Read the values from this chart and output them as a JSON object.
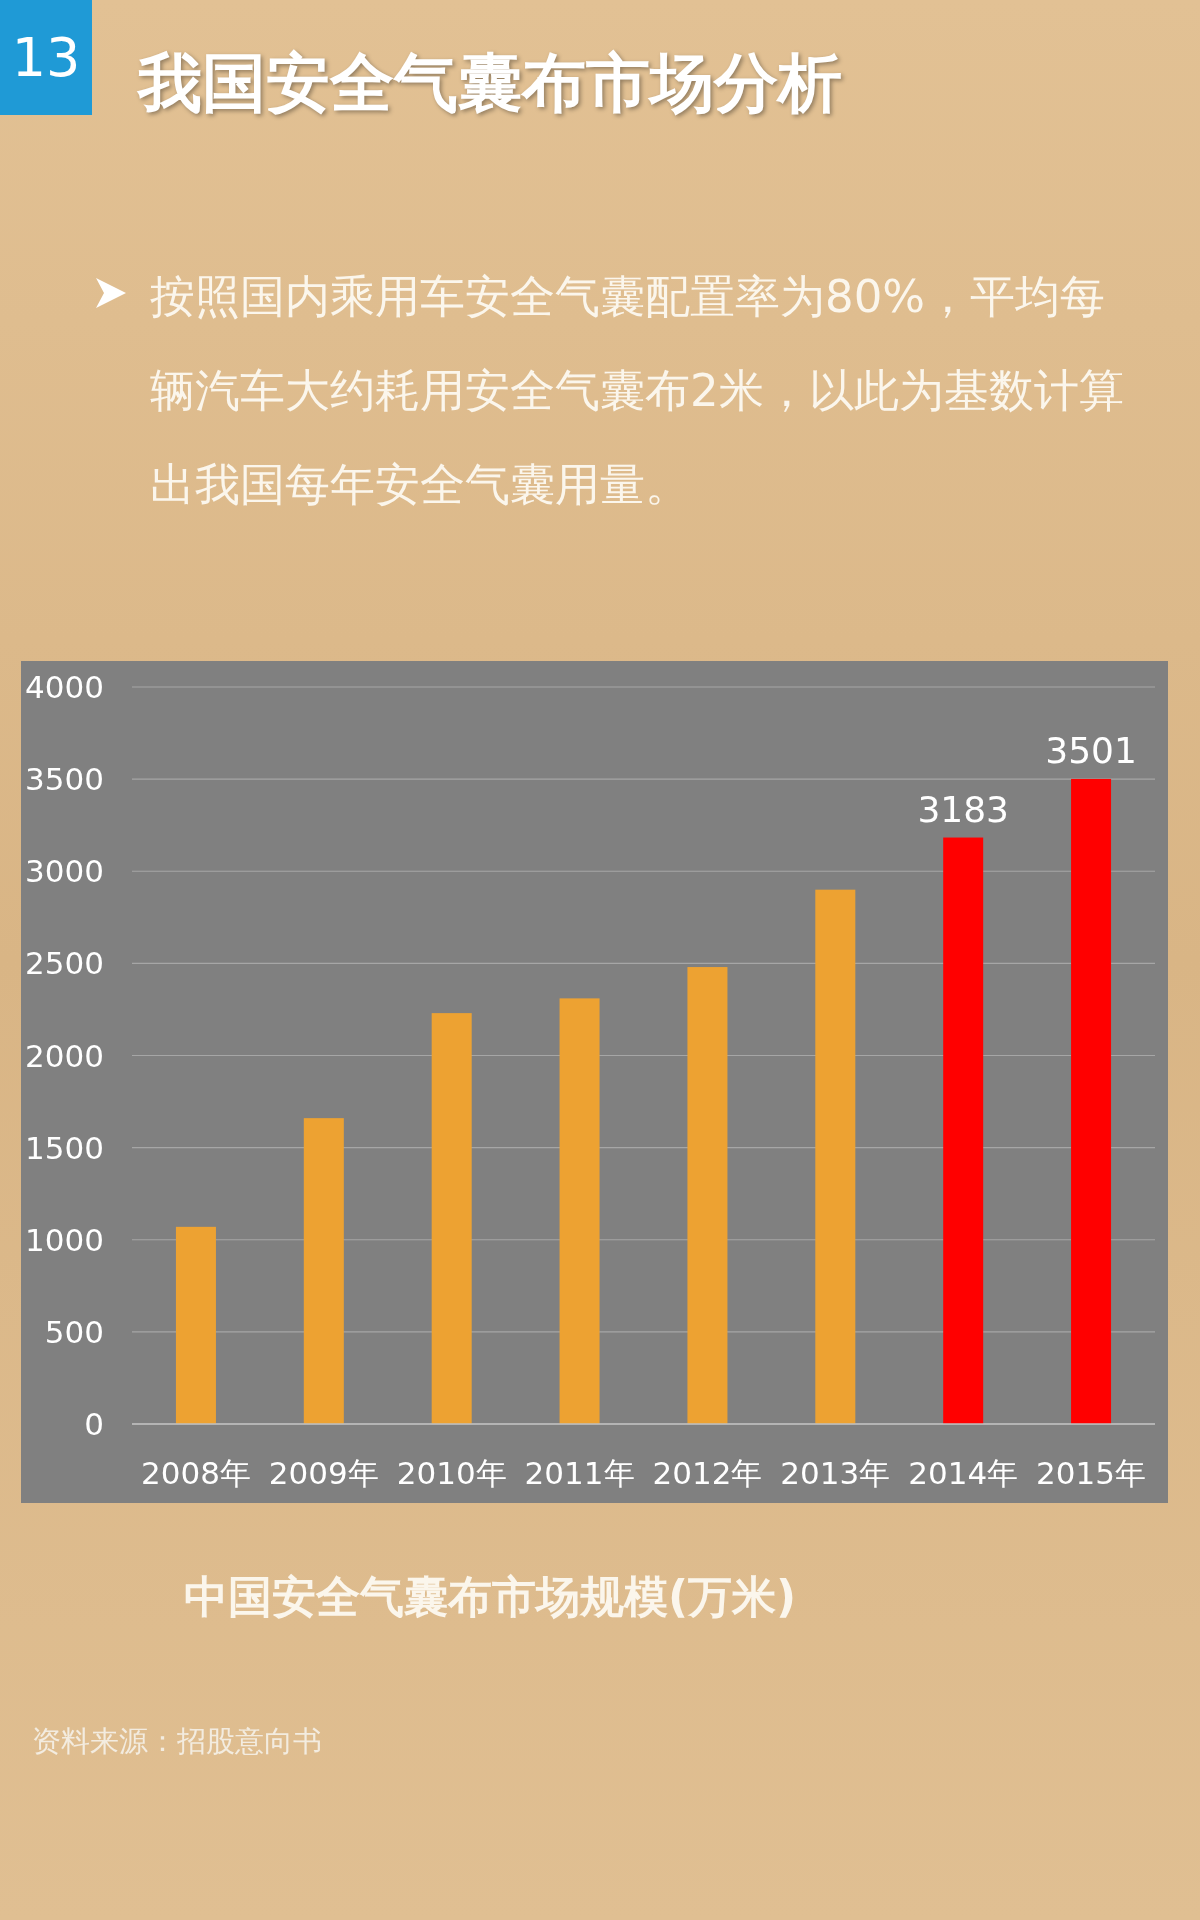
{
  "chart_data": {
    "type": "bar",
    "title": "我国安全气囊布市场分析",
    "subtitle": "按照国内乘用车安全气囊配置率为80%，平均每辆汽车大约耗用安全气囊布2米，以此为基数计算出我国每年安全气囊用量。",
    "categories": [
      "2008年",
      "2009年",
      "2010年",
      "2011年",
      "2012年",
      "2013年",
      "2014年",
      "2015年"
    ],
    "values": [
      1070,
      1660,
      2230,
      2310,
      2480,
      2900,
      3183,
      3501
    ],
    "colors": [
      "#eda232",
      "#eda232",
      "#eda232",
      "#eda232",
      "#eda232",
      "#eda232",
      "#ff0000",
      "#ff0000"
    ],
    "value_labels": [
      null,
      null,
      null,
      null,
      null,
      null,
      "3183",
      "3501"
    ],
    "ylim": [
      0,
      4000
    ],
    "yticks": [
      0,
      500,
      1000,
      1500,
      2000,
      2500,
      3000,
      3500,
      4000
    ],
    "grid": "y",
    "annotations": [
      "13",
      "中国安全气囊布市场规模(万米)",
      "资料来源：招股意向书"
    ]
  }
}
